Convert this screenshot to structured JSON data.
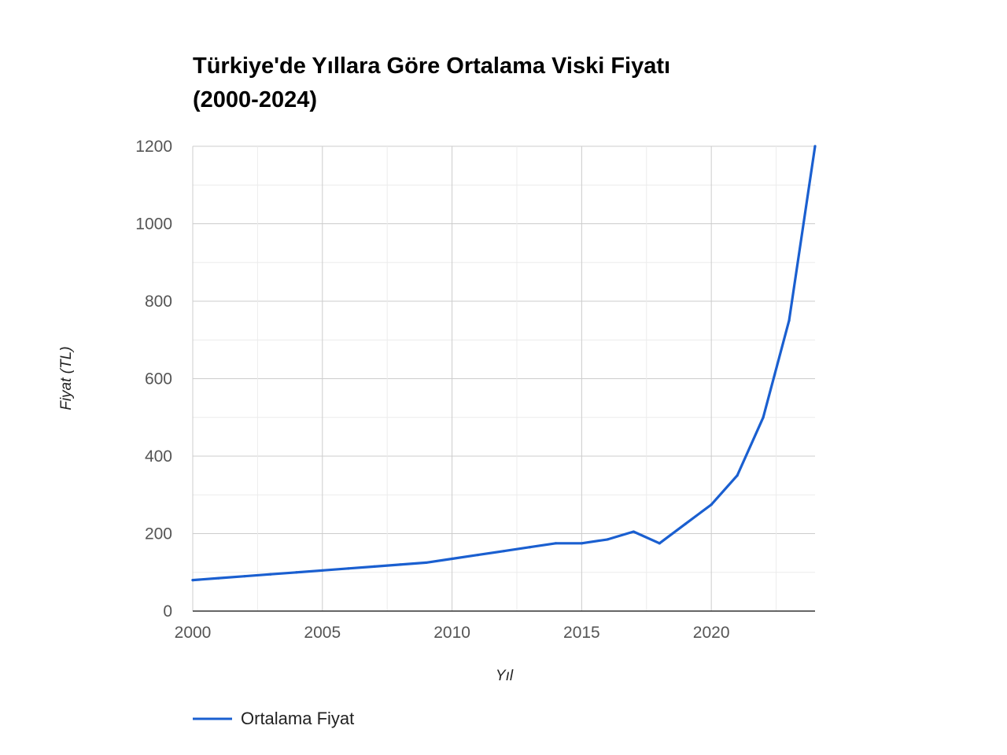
{
  "chart_data": {
    "type": "line",
    "title_lines": [
      "Türkiye'de Yıllara Göre Ortalama Viski Fiyatı",
      "(2000-2024)"
    ],
    "xlabel": "Yıl",
    "ylabel": "Fiyat (TL)",
    "xlim": [
      2000,
      2024
    ],
    "ylim": [
      0,
      1200
    ],
    "x_ticks": [
      2000,
      2005,
      2010,
      2015,
      2020
    ],
    "y_ticks": [
      0,
      200,
      400,
      600,
      800,
      1000,
      1200
    ],
    "grid": true,
    "legend_position": "bottom-left",
    "series": [
      {
        "name": "Ortalama Fiyat",
        "color": "#1a5fd0",
        "x": [
          2000,
          2001,
          2002,
          2003,
          2004,
          2005,
          2006,
          2007,
          2008,
          2009,
          2010,
          2011,
          2012,
          2013,
          2014,
          2015,
          2016,
          2017,
          2018,
          2019,
          2020,
          2021,
          2022,
          2023,
          2024
        ],
        "values": [
          80,
          85,
          90,
          95,
          100,
          105,
          110,
          115,
          120,
          125,
          135,
          145,
          155,
          165,
          175,
          175,
          185,
          205,
          175,
          225,
          275,
          350,
          500,
          750,
          1200
        ]
      }
    ]
  }
}
